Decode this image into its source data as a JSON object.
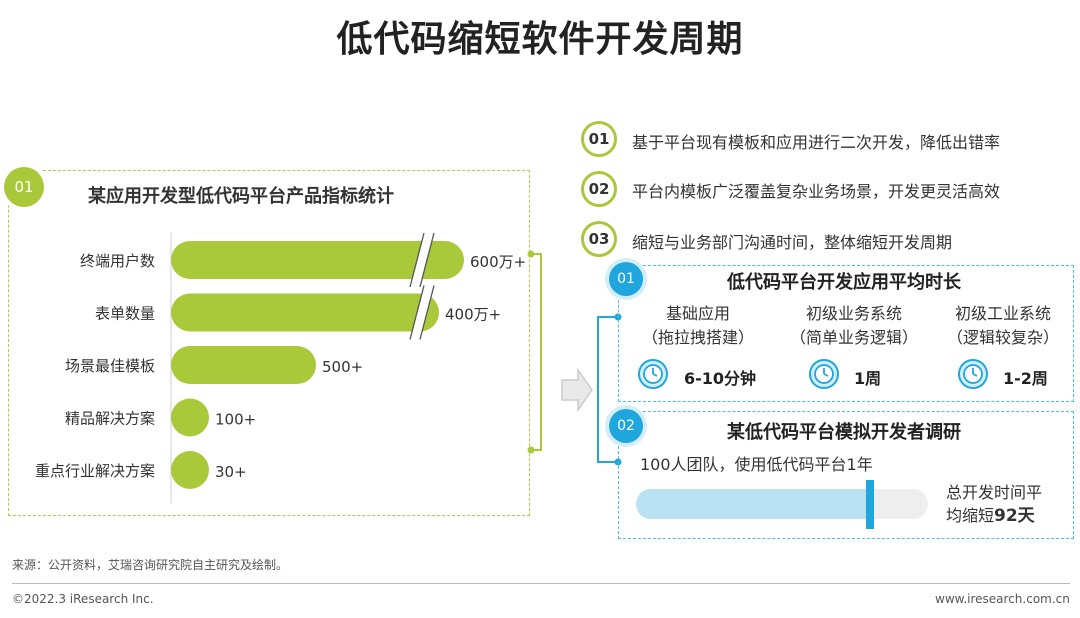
{
  "title": "低代码缩短软件开发周期",
  "colors": {
    "green": "#a9c83a",
    "blue": "#1fa6dc",
    "light_blue": "#b9e2f2",
    "grey": "#eeeeee"
  },
  "left": {
    "badge": "01",
    "heading": "某应用开发型低代码平台产品指标统计"
  },
  "chart_data": {
    "type": "bar",
    "orientation": "horizontal",
    "title": "某应用开发型低代码平台产品指标统计",
    "axis_break": true,
    "categories": [
      "终端用户数",
      "表单数量",
      "场景最佳模板",
      "精品解决方案",
      "重点行业解决方案"
    ],
    "values": [
      6000000,
      4000000,
      500,
      100,
      30
    ],
    "value_labels": [
      "600万+",
      "400万+",
      "500+",
      "100+",
      "30+"
    ],
    "series": [
      {
        "values": [
          6000000,
          4000000,
          500,
          100,
          30
        ]
      }
    ]
  },
  "list": [
    {
      "num": "01",
      "text": "基于平台现有模板和应用进行二次开发，降低出错率"
    },
    {
      "num": "02",
      "text": "平台内模板广泛覆盖复杂业务场景，开发更灵活高效"
    },
    {
      "num": "03",
      "text": "缩短与业务部门沟通时间，整体缩短开发周期"
    }
  ],
  "box1": {
    "badge": "01",
    "heading": "低代码平台开发应用平均时长",
    "items": [
      {
        "line1": "基础应用",
        "line2": "（拖拉拽搭建）",
        "duration": "6-10分钟",
        "icon": "clock-icon"
      },
      {
        "line1": "初级业务系统",
        "line2": "（简单业务逻辑）",
        "duration": "1周",
        "icon": "clock-icon"
      },
      {
        "line1": "初级工业系统",
        "line2": "（逻辑较复杂）",
        "duration": "1-2周",
        "icon": "clock-icon"
      }
    ]
  },
  "box2": {
    "badge": "02",
    "heading": "某低代码平台模拟开发者调研",
    "subtitle": "100人团队，使用低代码平台1年",
    "note_line1": "总开发时间平",
    "note_line2": "均缩短",
    "note_value": "92天",
    "progress_fraction": 0.8
  },
  "footer": {
    "source": "来源：公开资料，艾瑞咨询研究院自主研究及绘制。",
    "copyright": "©2022.3 iResearch Inc.",
    "website": "www.iresearch.com.cn"
  }
}
